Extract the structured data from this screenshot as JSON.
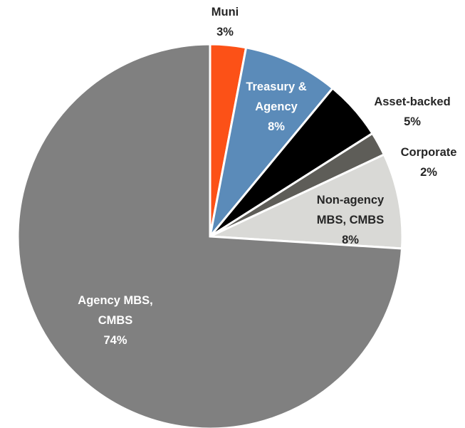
{
  "chart_data": {
    "type": "pie",
    "categories": [
      "Muni",
      "Treasury & Agency",
      "Asset-backed",
      "Corporate",
      "Non-agency MBS, CMBS",
      "Agency MBS, CMBS"
    ],
    "values": [
      3,
      8,
      5,
      2,
      8,
      74
    ],
    "value_labels": [
      "3%",
      "8%",
      "5%",
      "2%",
      "8%",
      "74%"
    ],
    "colors": [
      "#fc5117",
      "#5b8bb9",
      "#000000",
      "#5e5d58",
      "#d9d9d6",
      "#808080"
    ],
    "start_angle": 0,
    "direction": "clockwise"
  }
}
